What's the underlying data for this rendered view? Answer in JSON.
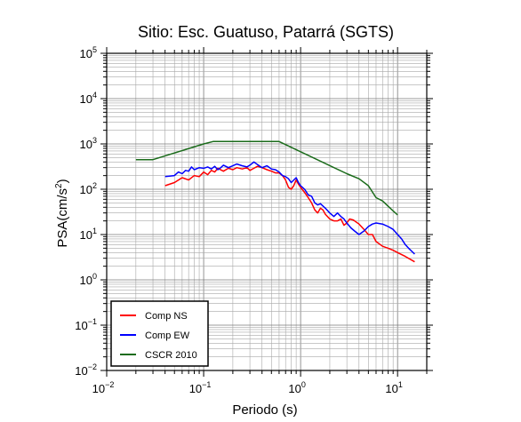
{
  "chart_data": {
    "type": "line",
    "title": "Sitio: Esc. Guatuso, Patarrá (SGTS)",
    "xlabel": "Periodo (s)",
    "ylabel_main": "PSA(cm/s",
    "ylabel_sup": "2",
    "ylabel_close": ")",
    "x_scale": "log",
    "y_scale": "log",
    "xlim": [
      0.01,
      20
    ],
    "ylim": [
      0.01,
      100000
    ],
    "grid": true,
    "legend_position": "bottom-left",
    "x_ticks": [
      {
        "value": 0.01,
        "base": "10",
        "exp": "−2"
      },
      {
        "value": 0.1,
        "base": "10",
        "exp": "−1"
      },
      {
        "value": 1,
        "base": "10",
        "exp": "0"
      },
      {
        "value": 10,
        "base": "10",
        "exp": "1"
      }
    ],
    "y_ticks": [
      {
        "value": 0.01,
        "base": "10",
        "exp": "−2"
      },
      {
        "value": 0.1,
        "base": "10",
        "exp": "−1"
      },
      {
        "value": 1,
        "base": "10",
        "exp": "0"
      },
      {
        "value": 10,
        "base": "10",
        "exp": "1"
      },
      {
        "value": 100,
        "base": "10",
        "exp": "2"
      },
      {
        "value": 1000,
        "base": "10",
        "exp": "3"
      },
      {
        "value": 10000,
        "base": "10",
        "exp": "4"
      },
      {
        "value": 100000,
        "base": "10",
        "exp": "5"
      }
    ],
    "series": [
      {
        "name": "Comp NS",
        "color": "#ff0000",
        "points": [
          [
            0.04,
            120
          ],
          [
            0.05,
            140
          ],
          [
            0.06,
            180
          ],
          [
            0.07,
            160
          ],
          [
            0.08,
            200
          ],
          [
            0.09,
            190
          ],
          [
            0.1,
            240
          ],
          [
            0.11,
            210
          ],
          [
            0.12,
            260
          ],
          [
            0.13,
            240
          ],
          [
            0.14,
            290
          ],
          [
            0.16,
            250
          ],
          [
            0.18,
            290
          ],
          [
            0.2,
            270
          ],
          [
            0.22,
            300
          ],
          [
            0.25,
            280
          ],
          [
            0.28,
            300
          ],
          [
            0.3,
            260
          ],
          [
            0.33,
            290
          ],
          [
            0.36,
            320
          ],
          [
            0.4,
            300
          ],
          [
            0.45,
            270
          ],
          [
            0.5,
            250
          ],
          [
            0.55,
            230
          ],
          [
            0.6,
            230
          ],
          [
            0.65,
            200
          ],
          [
            0.7,
            160
          ],
          [
            0.75,
            110
          ],
          [
            0.8,
            100
          ],
          [
            0.85,
            120
          ],
          [
            0.9,
            160
          ],
          [
            0.95,
            130
          ],
          [
            1.0,
            110
          ],
          [
            1.1,
            85
          ],
          [
            1.2,
            65
          ],
          [
            1.3,
            50
          ],
          [
            1.4,
            35
          ],
          [
            1.5,
            30
          ],
          [
            1.6,
            38
          ],
          [
            1.7,
            35
          ],
          [
            1.8,
            28
          ],
          [
            2.0,
            22
          ],
          [
            2.2,
            20
          ],
          [
            2.4,
            20
          ],
          [
            2.6,
            22
          ],
          [
            2.8,
            16
          ],
          [
            3.0,
            18
          ],
          [
            3.2,
            22
          ],
          [
            3.5,
            21
          ],
          [
            4.0,
            17
          ],
          [
            4.5,
            13
          ],
          [
            5.0,
            10
          ],
          [
            5.5,
            10
          ],
          [
            6.0,
            7
          ],
          [
            7.0,
            5.5
          ],
          [
            8.0,
            5
          ],
          [
            9.0,
            4.5
          ],
          [
            10.0,
            4
          ],
          [
            12.0,
            3.3
          ],
          [
            15.0,
            2.5
          ]
        ]
      },
      {
        "name": "Comp EW",
        "color": "#0000ff",
        "points": [
          [
            0.04,
            190
          ],
          [
            0.05,
            200
          ],
          [
            0.055,
            240
          ],
          [
            0.06,
            220
          ],
          [
            0.065,
            260
          ],
          [
            0.07,
            250
          ],
          [
            0.075,
            310
          ],
          [
            0.08,
            270
          ],
          [
            0.09,
            300
          ],
          [
            0.1,
            290
          ],
          [
            0.11,
            310
          ],
          [
            0.12,
            280
          ],
          [
            0.13,
            320
          ],
          [
            0.14,
            270
          ],
          [
            0.15,
            300
          ],
          [
            0.16,
            340
          ],
          [
            0.18,
            300
          ],
          [
            0.2,
            330
          ],
          [
            0.22,
            360
          ],
          [
            0.25,
            330
          ],
          [
            0.28,
            310
          ],
          [
            0.3,
            340
          ],
          [
            0.33,
            400
          ],
          [
            0.36,
            350
          ],
          [
            0.4,
            300
          ],
          [
            0.45,
            330
          ],
          [
            0.5,
            280
          ],
          [
            0.55,
            270
          ],
          [
            0.6,
            240
          ],
          [
            0.65,
            200
          ],
          [
            0.7,
            190
          ],
          [
            0.75,
            170
          ],
          [
            0.8,
            140
          ],
          [
            0.9,
            180
          ],
          [
            0.95,
            140
          ],
          [
            1.0,
            120
          ],
          [
            1.1,
            100
          ],
          [
            1.2,
            75
          ],
          [
            1.3,
            70
          ],
          [
            1.4,
            50
          ],
          [
            1.5,
            45
          ],
          [
            1.6,
            48
          ],
          [
            1.8,
            38
          ],
          [
            2.0,
            30
          ],
          [
            2.2,
            25
          ],
          [
            2.4,
            30
          ],
          [
            2.6,
            25
          ],
          [
            2.8,
            22
          ],
          [
            3.0,
            18
          ],
          [
            3.3,
            14
          ],
          [
            3.6,
            12
          ],
          [
            4.0,
            10
          ],
          [
            4.5,
            12
          ],
          [
            5.0,
            15
          ],
          [
            5.5,
            17
          ],
          [
            6.0,
            18
          ],
          [
            7.0,
            17
          ],
          [
            8.0,
            15
          ],
          [
            9.0,
            13
          ],
          [
            10.0,
            10
          ],
          [
            11.0,
            8
          ],
          [
            12.0,
            6
          ],
          [
            13.0,
            5
          ],
          [
            15.0,
            3.7
          ]
        ]
      },
      {
        "name": "CSCR 2010",
        "color": "#1a6b1a",
        "points": [
          [
            0.02,
            450
          ],
          [
            0.03,
            450
          ],
          [
            0.1,
            1000
          ],
          [
            0.125,
            1130
          ],
          [
            0.6,
            1130
          ],
          [
            3.0,
            220
          ],
          [
            4.0,
            170
          ],
          [
            5.0,
            120
          ],
          [
            6.0,
            65
          ],
          [
            7.0,
            55
          ],
          [
            8.0,
            42
          ],
          [
            10.0,
            27
          ]
        ]
      }
    ]
  }
}
